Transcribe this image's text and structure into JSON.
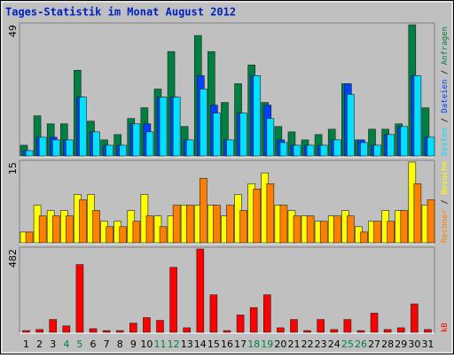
{
  "title": "Tages-Statistik im Monat August 2012",
  "chart_data": [
    {
      "type": "bar",
      "ylim": [
        0,
        49
      ],
      "yticks": [
        49
      ],
      "series": [
        {
          "name": "Anfragen",
          "color": "#008040",
          "values": [
            4,
            15,
            12,
            12,
            32,
            13,
            6,
            8,
            14,
            18,
            25,
            39,
            11,
            45,
            39,
            20,
            27,
            34,
            20,
            11,
            9,
            6,
            8,
            10,
            27,
            6,
            10,
            10,
            12,
            49,
            18
          ]
        },
        {
          "name": "Dateien",
          "color": "#0040ff",
          "values": [
            2,
            7,
            7,
            6,
            22,
            9,
            4,
            4,
            12,
            12,
            22,
            22,
            6,
            30,
            19,
            6,
            16,
            30,
            19,
            6,
            4,
            4,
            4,
            6,
            27,
            6,
            4,
            8,
            11,
            30,
            7
          ]
        },
        {
          "name": "Seiten",
          "color": "#00e0ff",
          "values": [
            2,
            7,
            6,
            6,
            22,
            9,
            4,
            4,
            12,
            9,
            22,
            22,
            6,
            25,
            16,
            6,
            16,
            30,
            14,
            5,
            4,
            4,
            4,
            6,
            23,
            5,
            4,
            8,
            11,
            30,
            7
          ]
        }
      ]
    },
    {
      "type": "bar",
      "ylim": [
        0,
        15
      ],
      "yticks": [
        15
      ],
      "series": [
        {
          "name": "Besuche",
          "color": "#ffff00",
          "values": [
            2,
            7,
            6,
            6,
            9,
            9,
            4,
            4,
            6,
            9,
            5,
            5,
            7,
            7,
            7,
            5,
            9,
            11,
            13,
            7,
            6,
            5,
            4,
            5,
            6,
            3,
            4,
            6,
            6,
            15,
            7
          ]
        },
        {
          "name": "Rechner",
          "color": "#ff8000",
          "values": [
            2,
            5,
            5,
            5,
            8,
            6,
            3,
            3,
            4,
            5,
            3,
            7,
            7,
            12,
            7,
            7,
            6,
            10,
            11,
            7,
            5,
            5,
            4,
            5,
            5,
            2,
            4,
            4,
            6,
            11,
            8
          ]
        }
      ]
    },
    {
      "type": "bar",
      "ylim": [
        0,
        482
      ],
      "yticks": [
        482
      ],
      "categories": [
        "1",
        "2",
        "3",
        "4",
        "5",
        "6",
        "7",
        "8",
        "9",
        "10",
        "11",
        "12",
        "13",
        "14",
        "15",
        "16",
        "17",
        "18",
        "19",
        "20",
        "21",
        "22",
        "23",
        "24",
        "25",
        "26",
        "27",
        "28",
        "29",
        "30",
        "31"
      ],
      "category_colors": [
        "#000000",
        "#000000",
        "#000000",
        "#008040",
        "#008040",
        "#000000",
        "#000000",
        "#000000",
        "#000000",
        "#000000",
        "#008040",
        "#008040",
        "#000000",
        "#000000",
        "#000000",
        "#000000",
        "#000000",
        "#008040",
        "#008040",
        "#000000",
        "#000000",
        "#000000",
        "#000000",
        "#000000",
        "#008040",
        "#008040",
        "#000000",
        "#000000",
        "#000000",
        "#000000",
        "#000000"
      ],
      "series": [
        {
          "name": "kB",
          "color": "#ff0000",
          "values": [
            10,
            16,
            74,
            37,
            392,
            21,
            10,
            10,
            53,
            85,
            69,
            376,
            26,
            482,
            217,
            10,
            100,
            143,
            217,
            26,
            74,
            10,
            74,
            16,
            74,
            10,
            111,
            16,
            26,
            164,
            16
          ]
        }
      ]
    }
  ]
}
